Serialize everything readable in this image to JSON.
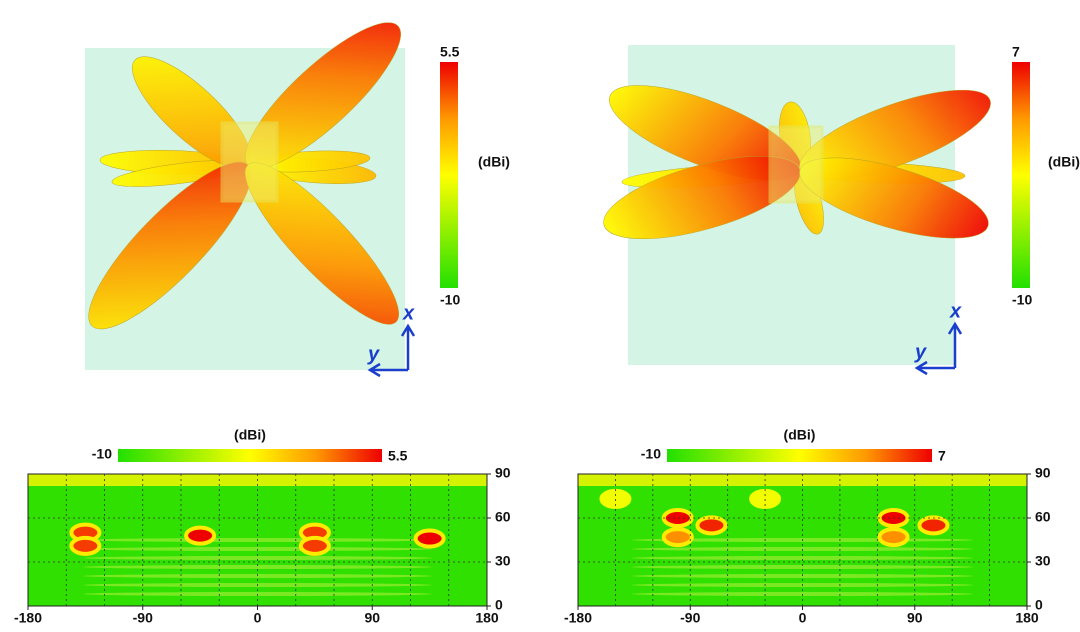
{
  "patterns": [
    {
      "colorbar": {
        "label": "(dBi)",
        "min": -10,
        "max": 5.5
      },
      "axes": {
        "x": "x",
        "y": "y"
      }
    },
    {
      "colorbar": {
        "label": "(dBi)",
        "min": -10,
        "max": 7
      },
      "axes": {
        "x": "x",
        "y": "y"
      }
    }
  ],
  "heatmaps": [
    {
      "colorbar": {
        "label": "(dBi)",
        "min": -10,
        "max": 5.5
      },
      "xlim": [
        -180,
        180
      ],
      "xticks": [
        -180,
        -90,
        0,
        90,
        180
      ],
      "xgrid": [
        -150,
        -120,
        -90,
        -60,
        -30,
        0,
        30,
        60,
        90,
        120,
        150
      ],
      "ylim": [
        0,
        90
      ],
      "yticks": [
        0,
        30,
        60,
        90
      ],
      "grid": true,
      "peaks": [
        {
          "x": -135,
          "y": 50,
          "value": 4
        },
        {
          "x": -135,
          "y": 41,
          "value": 4
        },
        {
          "x": -45,
          "y": 48,
          "value": 5.5
        },
        {
          "x": 45,
          "y": 50,
          "value": 4
        },
        {
          "x": 45,
          "y": 41,
          "value": 4
        },
        {
          "x": 135,
          "y": 46,
          "value": 5.5
        }
      ]
    },
    {
      "colorbar": {
        "label": "(dBi)",
        "min": -10,
        "max": 7
      },
      "xlim": [
        -180,
        180
      ],
      "xticks": [
        -180,
        -90,
        0,
        90,
        180
      ],
      "xgrid": [
        -150,
        -120,
        -90,
        -60,
        -30,
        0,
        30,
        60,
        90,
        120,
        150
      ],
      "ylim": [
        0,
        90
      ],
      "yticks": [
        0,
        30,
        60,
        90
      ],
      "grid": true,
      "peaks": [
        {
          "x": -150,
          "y": 73,
          "value": -2
        },
        {
          "x": -30,
          "y": 73,
          "value": -2
        },
        {
          "x": -100,
          "y": 60,
          "value": 7
        },
        {
          "x": -73,
          "y": 55,
          "value": 6
        },
        {
          "x": -100,
          "y": 47,
          "value": 3
        },
        {
          "x": 73,
          "y": 60,
          "value": 7
        },
        {
          "x": 105,
          "y": 55,
          "value": 6
        },
        {
          "x": 73,
          "y": 47,
          "value": 3
        }
      ]
    }
  ]
}
